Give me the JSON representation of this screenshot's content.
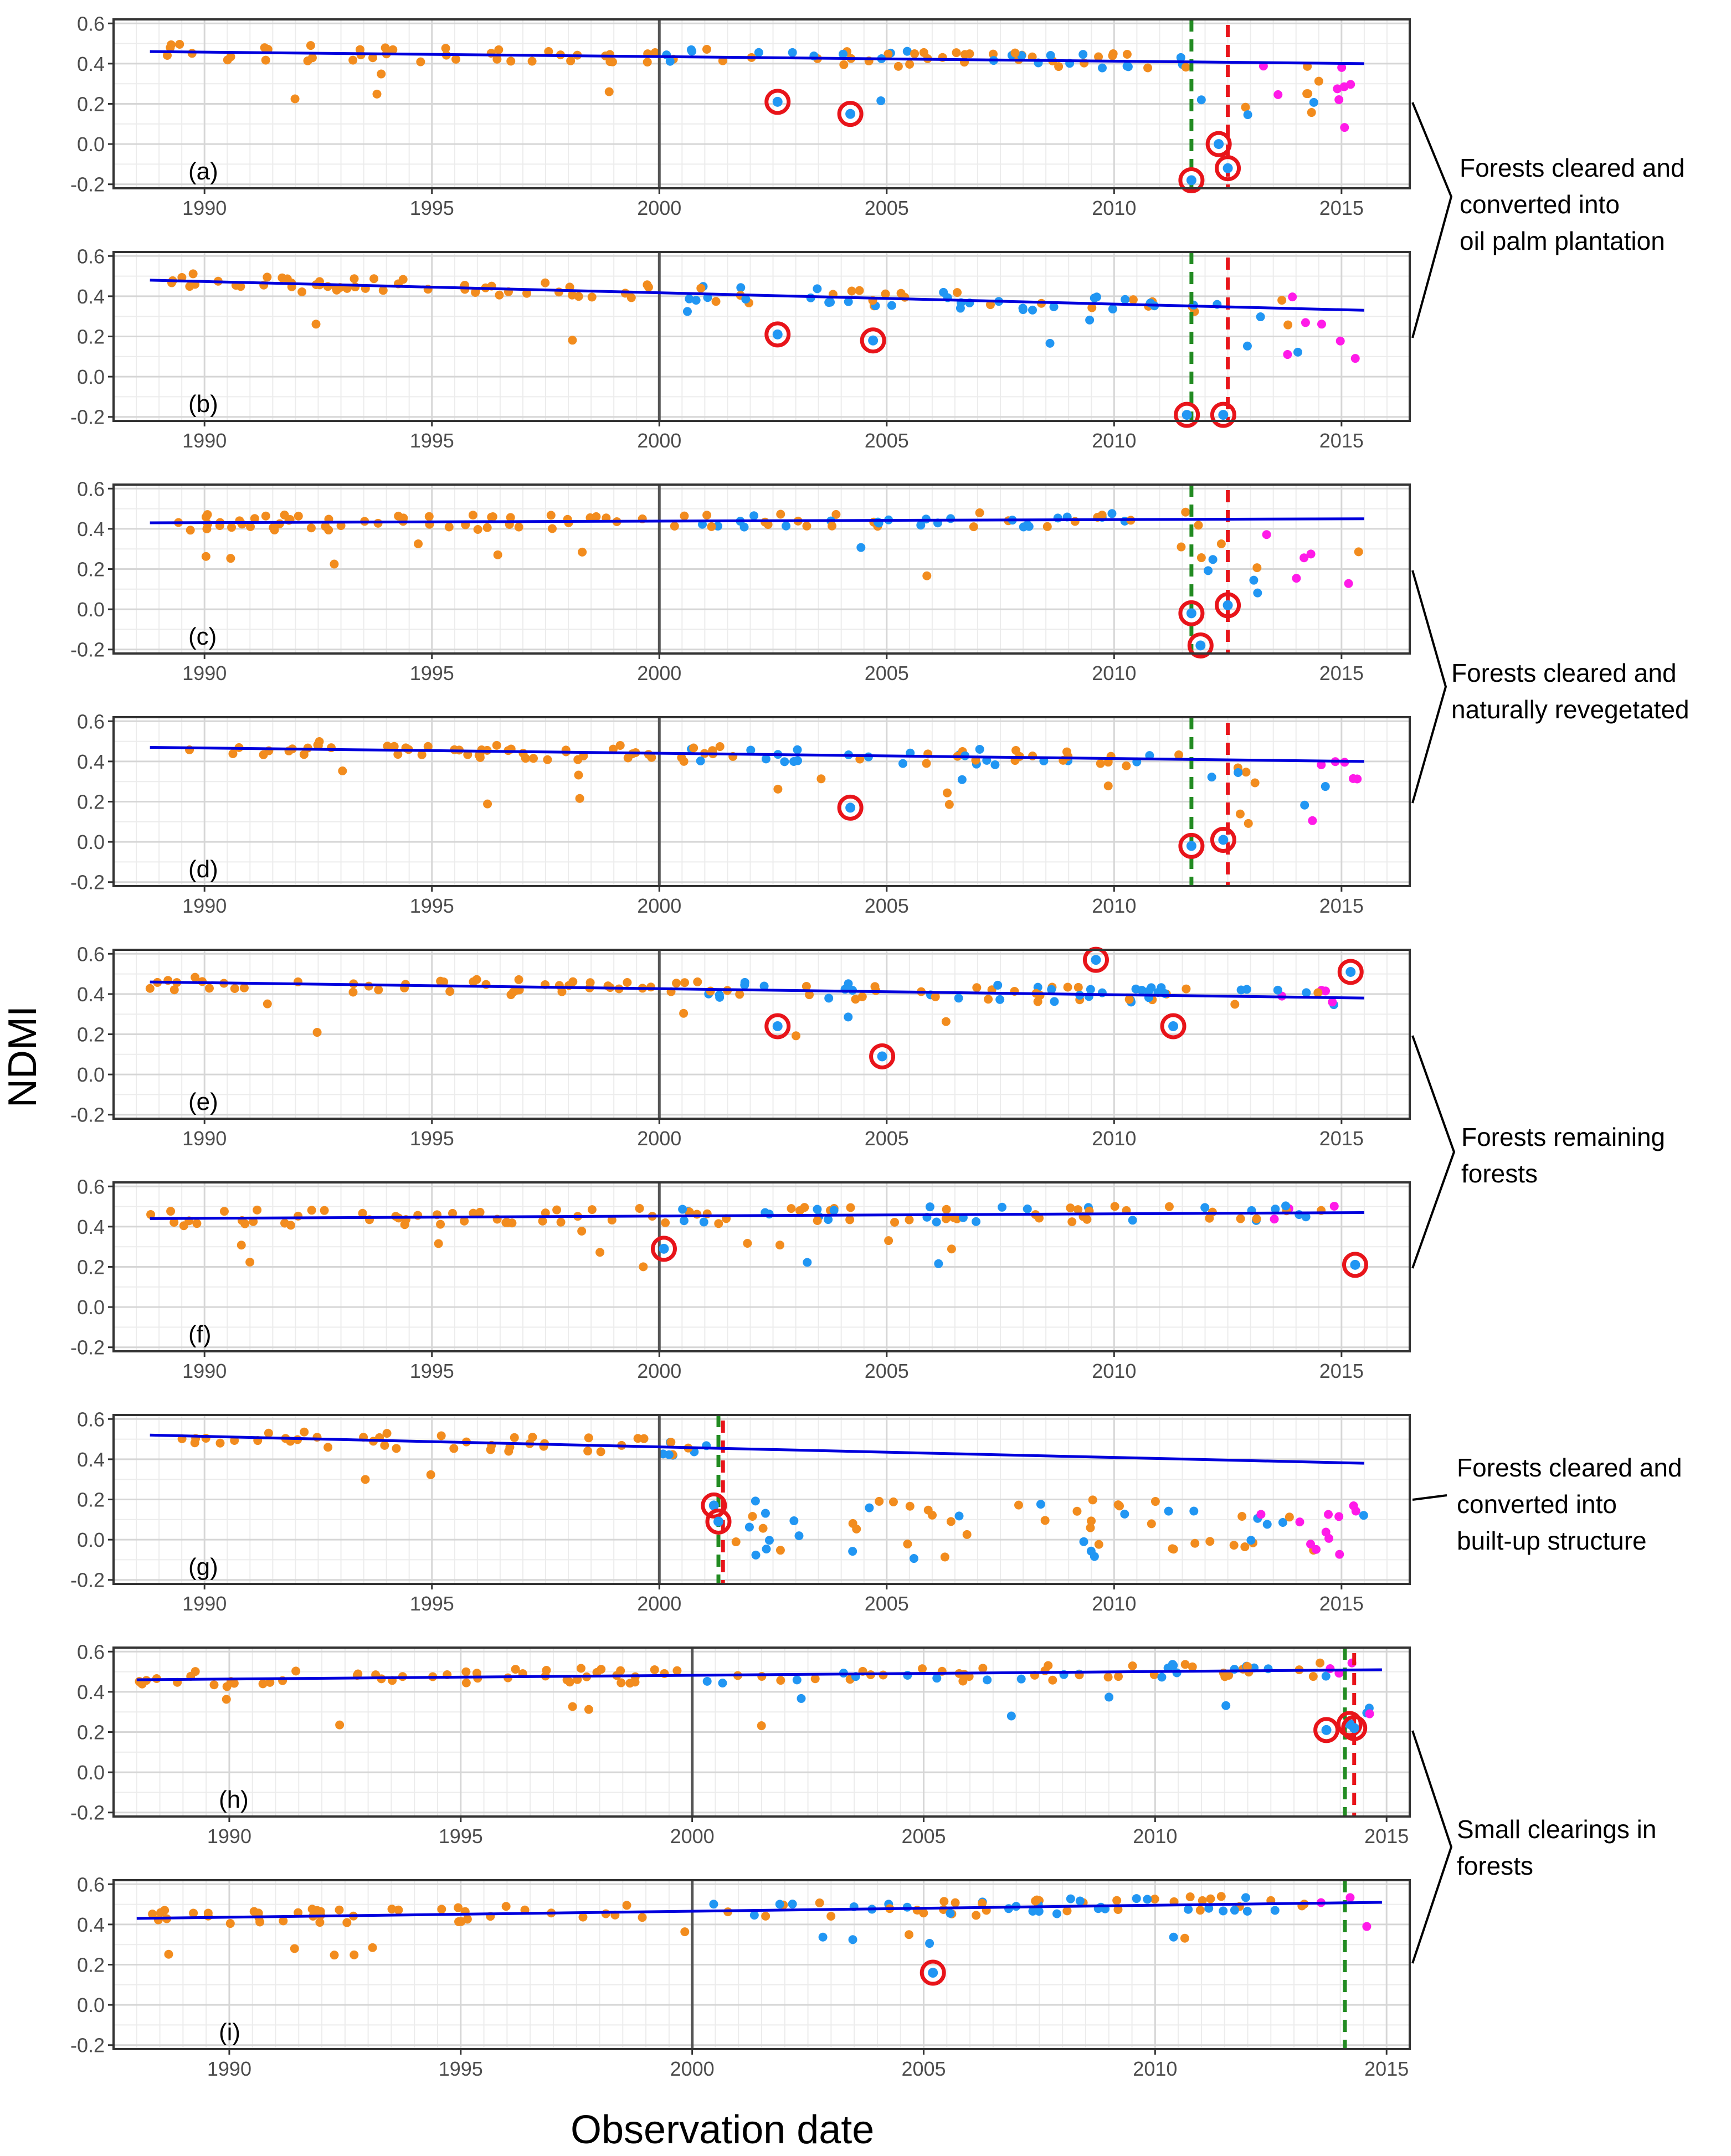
{
  "figure": {
    "ylabel": "NDMI",
    "xlabel": "Observation date"
  },
  "colors": {
    "point_orange": "#f28c1e",
    "point_blue": "#2196f3",
    "point_magenta": "#ff1ae8",
    "trend_line": "#0000dd",
    "break_green": "#228b22",
    "break_red": "#e8141a",
    "circle_red": "#e8141a",
    "vline_gray": "#555555"
  },
  "annotations": [
    {
      "text": "Forests cleared and\nconverted into\noil palm plantation"
    },
    {
      "text": "Forests cleared and\nnaturally revegetated"
    },
    {
      "text": "Forests remaining\nforests"
    },
    {
      "text": "Forests cleared and\nconverted into\nbuilt-up structure"
    },
    {
      "text": "Small clearings in\nforests"
    }
  ],
  "chart_data": [
    {
      "type": "scatter",
      "panel": "(a)",
      "xlim": [
        1988.0,
        2016.5
      ],
      "ylim": [
        -0.22,
        0.62
      ],
      "xticks": [
        1990,
        1995,
        2000,
        2005,
        2010,
        2015
      ],
      "yticks": [
        -0.2,
        0.0,
        0.2,
        0.4,
        0.6
      ],
      "trend": [
        [
          1988.8,
          0.46
        ],
        [
          2015.5,
          0.4
        ]
      ],
      "vlines": {
        "gray": 2000.0,
        "green": 2011.7,
        "red": 2012.5
      },
      "circles": [
        [
          2002.6,
          0.21
        ],
        [
          2004.2,
          0.15
        ],
        [
          2011.7,
          -0.18
        ],
        [
          2012.3,
          0.0
        ],
        [
          2012.5,
          -0.12
        ]
      ]
    },
    {
      "type": "scatter",
      "panel": "(b)",
      "xlim": [
        1988.0,
        2016.5
      ],
      "ylim": [
        -0.22,
        0.62
      ],
      "xticks": [
        1990,
        1995,
        2000,
        2005,
        2010,
        2015
      ],
      "yticks": [
        -0.2,
        0.0,
        0.2,
        0.4,
        0.6
      ],
      "trend": [
        [
          1988.8,
          0.48
        ],
        [
          2015.5,
          0.33
        ]
      ],
      "vlines": {
        "gray": 2000.0,
        "green": 2011.7,
        "red": 2012.5
      },
      "circles": [
        [
          2002.6,
          0.21
        ],
        [
          2004.7,
          0.18
        ],
        [
          2011.6,
          -0.19
        ],
        [
          2012.4,
          -0.19
        ]
      ]
    },
    {
      "type": "scatter",
      "panel": "(c)",
      "xlim": [
        1988.0,
        2016.5
      ],
      "ylim": [
        -0.22,
        0.62
      ],
      "xticks": [
        1990,
        1995,
        2000,
        2005,
        2010,
        2015
      ],
      "yticks": [
        -0.2,
        0.0,
        0.2,
        0.4,
        0.6
      ],
      "trend": [
        [
          1988.8,
          0.43
        ],
        [
          2015.5,
          0.45
        ]
      ],
      "vlines": {
        "gray": 2000.0,
        "green": 2011.7,
        "red": 2012.5
      },
      "circles": [
        [
          2011.7,
          -0.02
        ],
        [
          2011.9,
          -0.18
        ],
        [
          2012.5,
          0.02
        ]
      ]
    },
    {
      "type": "scatter",
      "panel": "(d)",
      "xlim": [
        1988.0,
        2016.5
      ],
      "ylim": [
        -0.22,
        0.62
      ],
      "xticks": [
        1990,
        1995,
        2000,
        2005,
        2010,
        2015
      ],
      "yticks": [
        -0.2,
        0.0,
        0.2,
        0.4,
        0.6
      ],
      "trend": [
        [
          1988.8,
          0.47
        ],
        [
          2015.5,
          0.4
        ]
      ],
      "vlines": {
        "gray": 2000.0,
        "green": 2011.7,
        "red": 2012.5
      },
      "circles": [
        [
          2004.2,
          0.17
        ],
        [
          2011.7,
          -0.02
        ],
        [
          2012.4,
          0.01
        ]
      ]
    },
    {
      "type": "scatter",
      "panel": "(e)",
      "xlim": [
        1988.0,
        2016.5
      ],
      "ylim": [
        -0.22,
        0.62
      ],
      "xticks": [
        1990,
        1995,
        2000,
        2005,
        2010,
        2015
      ],
      "yticks": [
        -0.2,
        0.0,
        0.2,
        0.4,
        0.6
      ],
      "trend": [
        [
          1988.8,
          0.46
        ],
        [
          2015.5,
          0.38
        ]
      ],
      "vlines": {
        "gray": 2000.0
      },
      "circles": [
        [
          2002.6,
          0.24
        ],
        [
          2004.9,
          0.09
        ],
        [
          2009.6,
          0.57
        ],
        [
          2011.3,
          0.24
        ],
        [
          2015.2,
          0.51
        ]
      ]
    },
    {
      "type": "scatter",
      "panel": "(f)",
      "xlim": [
        1988.0,
        2016.5
      ],
      "ylim": [
        -0.22,
        0.62
      ],
      "xticks": [
        1990,
        1995,
        2000,
        2005,
        2010,
        2015
      ],
      "yticks": [
        -0.2,
        0.0,
        0.2,
        0.4,
        0.6
      ],
      "trend": [
        [
          1988.8,
          0.44
        ],
        [
          2015.5,
          0.47
        ]
      ],
      "vlines": {
        "gray": 2000.0
      },
      "circles": [
        [
          2000.1,
          0.29
        ],
        [
          2015.3,
          0.21
        ]
      ]
    },
    {
      "type": "scatter",
      "panel": "(g)",
      "xlim": [
        1988.0,
        2016.5
      ],
      "ylim": [
        -0.22,
        0.62
      ],
      "xticks": [
        1990,
        1995,
        2000,
        2005,
        2010,
        2015
      ],
      "yticks": [
        -0.2,
        0.0,
        0.2,
        0.4,
        0.6
      ],
      "trend": [
        [
          1988.8,
          0.52
        ],
        [
          2015.5,
          0.38
        ]
      ],
      "vlines": {
        "gray": 2000.0,
        "green": 2001.3,
        "red": 2001.4
      },
      "circles": [
        [
          2001.2,
          0.17
        ],
        [
          2001.3,
          0.09
        ]
      ]
    },
    {
      "type": "scatter",
      "panel": "(h)",
      "xlim": [
        1987.5,
        2015.5
      ],
      "ylim": [
        -0.22,
        0.62
      ],
      "xticks": [
        1990,
        1995,
        2000,
        2005,
        2010,
        2015
      ],
      "yticks": [
        -0.2,
        0.0,
        0.2,
        0.4,
        0.6
      ],
      "trend": [
        [
          1988.0,
          0.46
        ],
        [
          2014.9,
          0.51
        ]
      ],
      "vlines": {
        "gray": 2000.0,
        "green": 2014.1,
        "red": 2014.3
      },
      "circles": [
        [
          2013.7,
          0.21
        ],
        [
          2014.2,
          0.24
        ],
        [
          2014.3,
          0.22
        ]
      ]
    },
    {
      "type": "scatter",
      "panel": "(i)",
      "xlim": [
        1987.5,
        2015.5
      ],
      "ylim": [
        -0.22,
        0.62
      ],
      "xticks": [
        1990,
        1995,
        2000,
        2005,
        2010,
        2015
      ],
      "yticks": [
        -0.2,
        0.0,
        0.2,
        0.4,
        0.6
      ],
      "trend": [
        [
          1988.0,
          0.43
        ],
        [
          2014.9,
          0.51
        ]
      ],
      "vlines": {
        "gray": 2000.0,
        "green": 2014.1
      },
      "circles": [
        [
          2005.2,
          0.16
        ]
      ]
    }
  ]
}
